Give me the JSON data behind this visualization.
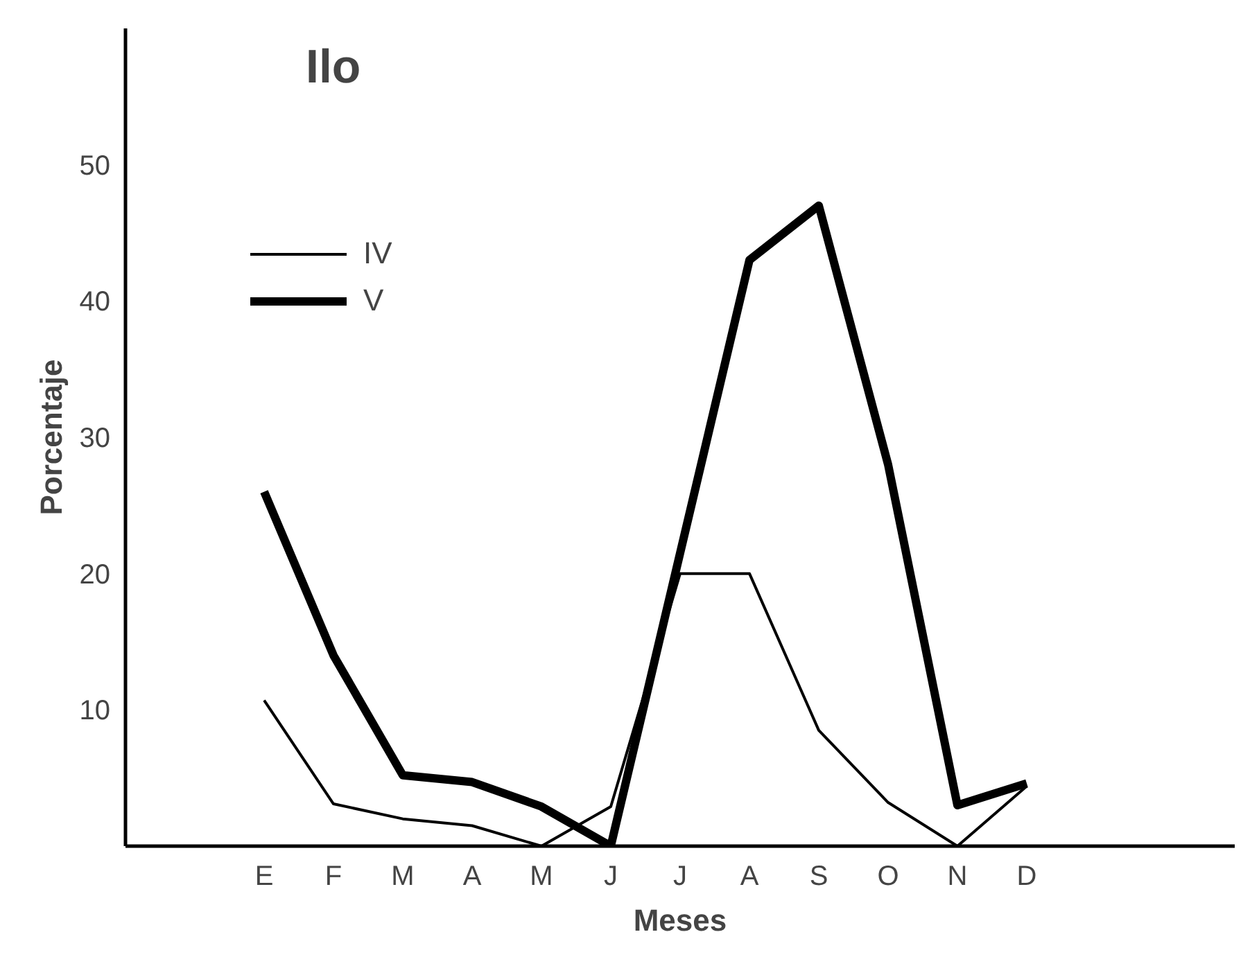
{
  "chart_data": {
    "type": "line",
    "title": "Ilo",
    "xlabel": "Meses",
    "ylabel": "Porcentaje",
    "categories": [
      "E",
      "F",
      "M",
      "A",
      "M",
      "J",
      "J",
      "A",
      "S",
      "O",
      "N",
      "D"
    ],
    "series": [
      {
        "name": "IV",
        "color": "#000000",
        "values": [
          10.7,
          3.1,
          2.0,
          1.5,
          0,
          2.9,
          20,
          20,
          8.5,
          3.2,
          0,
          4.4
        ]
      },
      {
        "name": "V",
        "color": "#000000",
        "values": [
          26,
          14,
          5.2,
          4.7,
          2.9,
          0,
          21.5,
          43,
          47,
          28,
          3,
          4.6
        ]
      }
    ],
    "ylim": [
      0,
      60
    ],
    "yticks": [
      10,
      20,
      30,
      40,
      50
    ],
    "grid": false,
    "legend": "top left",
    "marker": "none",
    "line_style": "solid"
  }
}
